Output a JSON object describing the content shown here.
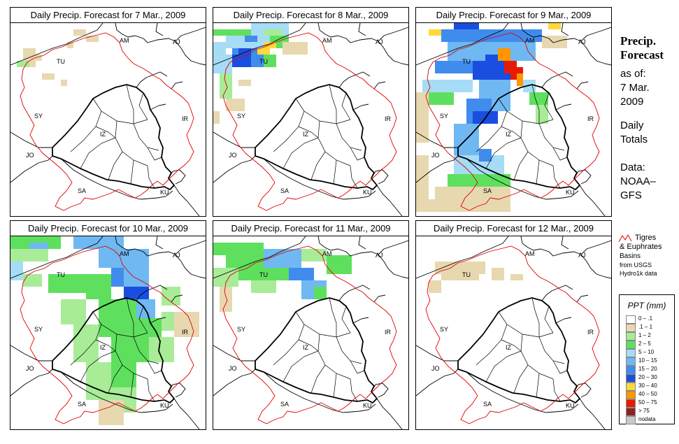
{
  "panels": [
    {
      "title": "Daily Precip. Forecast for  7 Mar., 2009"
    },
    {
      "title": "Daily Precip. Forecast for  8 Mar., 2009"
    },
    {
      "title": "Daily Precip. Forecast for  9 Mar., 2009"
    },
    {
      "title": "Daily Precip. Forecast for  10 Mar., 2009"
    },
    {
      "title": "Daily Precip. Forecast for  11 Mar., 2009"
    },
    {
      "title": "Daily Precip. Forecast for  12 Mar., 2009"
    }
  ],
  "country_labels": {
    "am": "AM",
    "aj": "AJ",
    "tu": "TU",
    "sy": "SY",
    "ir": "IR",
    "iz": "IZ",
    "jo": "JO",
    "sa": "SA",
    "ku": "KU"
  },
  "sidebar": {
    "title_line1": "Precip.",
    "title_line2": "Forecast",
    "asof_line1": "as of:",
    "asof_line2": "7 Mar.",
    "asof_line3": "2009",
    "daily_line1": "Daily",
    "daily_line2": "Totals",
    "data_line1": "Data:",
    "data_line2": "NOAA–",
    "data_line3": "GFS"
  },
  "basin_legend": {
    "line1": "Tigres",
    "line2": "& Euphrates",
    "line3": "Basins",
    "line4": "from USGS",
    "line5": "Hydro1k data"
  },
  "ppt_legend": {
    "title": "PPT (mm)",
    "items": [
      {
        "label": "0 – .1",
        "color": "#ffffff"
      },
      {
        "label": ".1 – 1",
        "color": "#e8d8b0"
      },
      {
        "label": "1 – 2",
        "color": "#a8ec98"
      },
      {
        "label": "2 – 5",
        "color": "#5ee05e"
      },
      {
        "label": "5 – 10",
        "color": "#a6dcf6"
      },
      {
        "label": "10 – 15",
        "color": "#6fb8f2"
      },
      {
        "label": "15 – 20",
        "color": "#3f8ced"
      },
      {
        "label": "20 – 30",
        "color": "#1a4ee0"
      },
      {
        "label": "30 – 40",
        "color": "#ffd93a"
      },
      {
        "label": "40 – 50",
        "color": "#ff9600"
      },
      {
        "label": "50 – 75",
        "color": "#e81a00"
      },
      {
        "label": "> 75",
        "color": "#8b2323"
      },
      {
        "label": "nodata",
        "color": "#c8c8c8"
      }
    ]
  }
}
